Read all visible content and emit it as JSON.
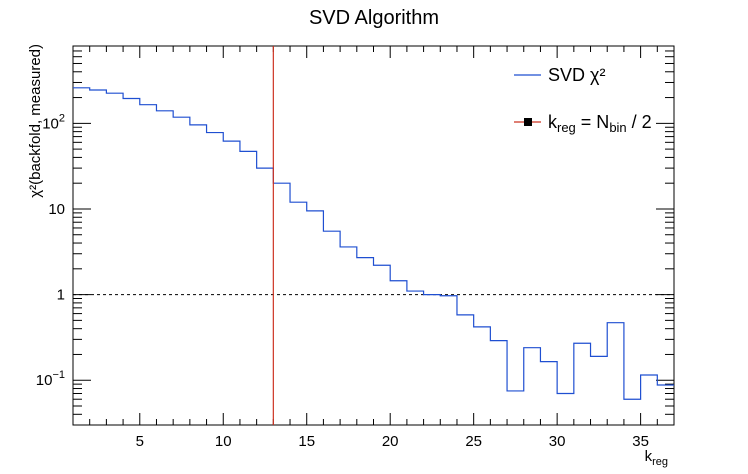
{
  "chart_data": {
    "type": "line",
    "title": "SVD Algorithm",
    "xlabel": "k",
    "xlabel_sub": "reg",
    "ylabel": "χ²(backfold, measured)",
    "x_scale": "linear",
    "y_scale": "log",
    "xlim": [
      1,
      37
    ],
    "ylim": [
      0.03,
      800
    ],
    "x_ticks": [
      5,
      10,
      15,
      20,
      25,
      30,
      35
    ],
    "y_ticks": [
      {
        "value": 0.1,
        "label": "10",
        "sup": "−1"
      },
      {
        "value": 1,
        "label": "1",
        "sup": ""
      },
      {
        "value": 10,
        "label": "10",
        "sup": ""
      },
      {
        "value": 100,
        "label": "10",
        "sup": "2"
      }
    ],
    "colors": {
      "series": "#1f4fd1",
      "marker_line": "#cc3322",
      "reference": "#000000"
    },
    "series": [
      {
        "name": "SVD χ²",
        "style": "step-histogram",
        "bin_edges": [
          1,
          2,
          3,
          4,
          5,
          6,
          7,
          8,
          9,
          10,
          11,
          12,
          13,
          14,
          15,
          16,
          17,
          18,
          19,
          20,
          21,
          22,
          23,
          24,
          25,
          26,
          27,
          28,
          29,
          30,
          31,
          32,
          33,
          34,
          35,
          36,
          37
        ],
        "values": [
          260,
          245,
          225,
          195,
          165,
          140,
          118,
          96,
          78,
          62,
          47,
          30,
          20,
          12,
          9.5,
          5.5,
          3.6,
          2.7,
          2.2,
          1.45,
          1.1,
          1.0,
          0.97,
          0.58,
          0.42,
          0.29,
          0.075,
          0.24,
          0.165,
          0.07,
          0.27,
          0.19,
          0.47,
          0.06,
          0.115,
          0.088
        ]
      }
    ],
    "vertical_line": {
      "x": 13,
      "legend": "k",
      "legend_sub1": "reg",
      "legend_mid": " = N",
      "legend_sub2": "bin",
      "legend_tail": " / 2"
    },
    "reference_line": {
      "y": 1,
      "style": "dashed"
    },
    "legend": {
      "placement": "top-right",
      "entries": [
        "SVD χ²",
        "k_reg = N_bin / 2"
      ]
    }
  }
}
